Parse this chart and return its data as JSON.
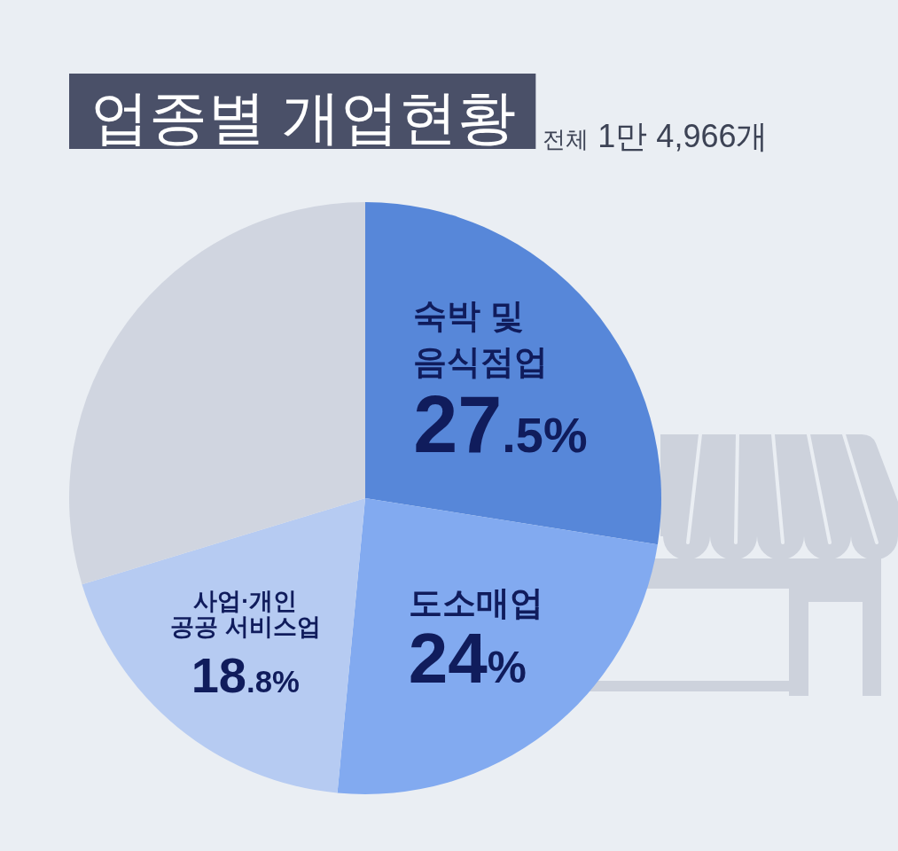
{
  "chart_data": {
    "type": "pie",
    "title": "업종별 개업현황",
    "subtitle": "전체 1만 4,966개",
    "categories": [
      "숙박 및\n음식점업",
      "도소매업",
      "사업·개인\n공공 서비스업",
      null
    ],
    "values": [
      27.5,
      24,
      18.8,
      29.7
    ],
    "colors": [
      "#5787d9",
      "#82aaf0",
      "#b6cbf2",
      "#d0d5e0"
    ],
    "value_labels": [
      "27.5%",
      "24%",
      "18.8%",
      null
    ]
  }
}
